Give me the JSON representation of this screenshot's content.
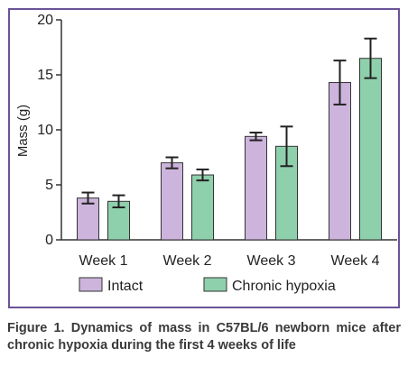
{
  "chart_data": {
    "type": "bar",
    "categories": [
      "Week 1",
      "Week 2",
      "Week 3",
      "Week 4"
    ],
    "series": [
      {
        "name": "Intact",
        "values": [
          3.8,
          7.0,
          9.4,
          14.3
        ],
        "errors": [
          0.5,
          0.5,
          0.35,
          2.0
        ],
        "color": "#cdb4dc"
      },
      {
        "name": "Chronic hypoxia",
        "values": [
          3.5,
          5.9,
          8.5,
          16.5
        ],
        "errors": [
          0.55,
          0.5,
          1.8,
          1.8
        ],
        "color": "#8fd0ac"
      }
    ],
    "ylabel": "Mass (g)",
    "xlabel": "",
    "ylim": [
      0,
      20
    ],
    "yticks": [
      "0",
      "5",
      "10",
      "15",
      "20"
    ],
    "grid": false,
    "legend_position": "bottom"
  },
  "caption": "Figure 1. Dynamics of mass in C57BL/6 newborn mice after chronic hypoxia during the first 4 weeks of life",
  "colors": {
    "frame": "#6a5397",
    "axis": "#333333",
    "errorbar": "#222222"
  }
}
